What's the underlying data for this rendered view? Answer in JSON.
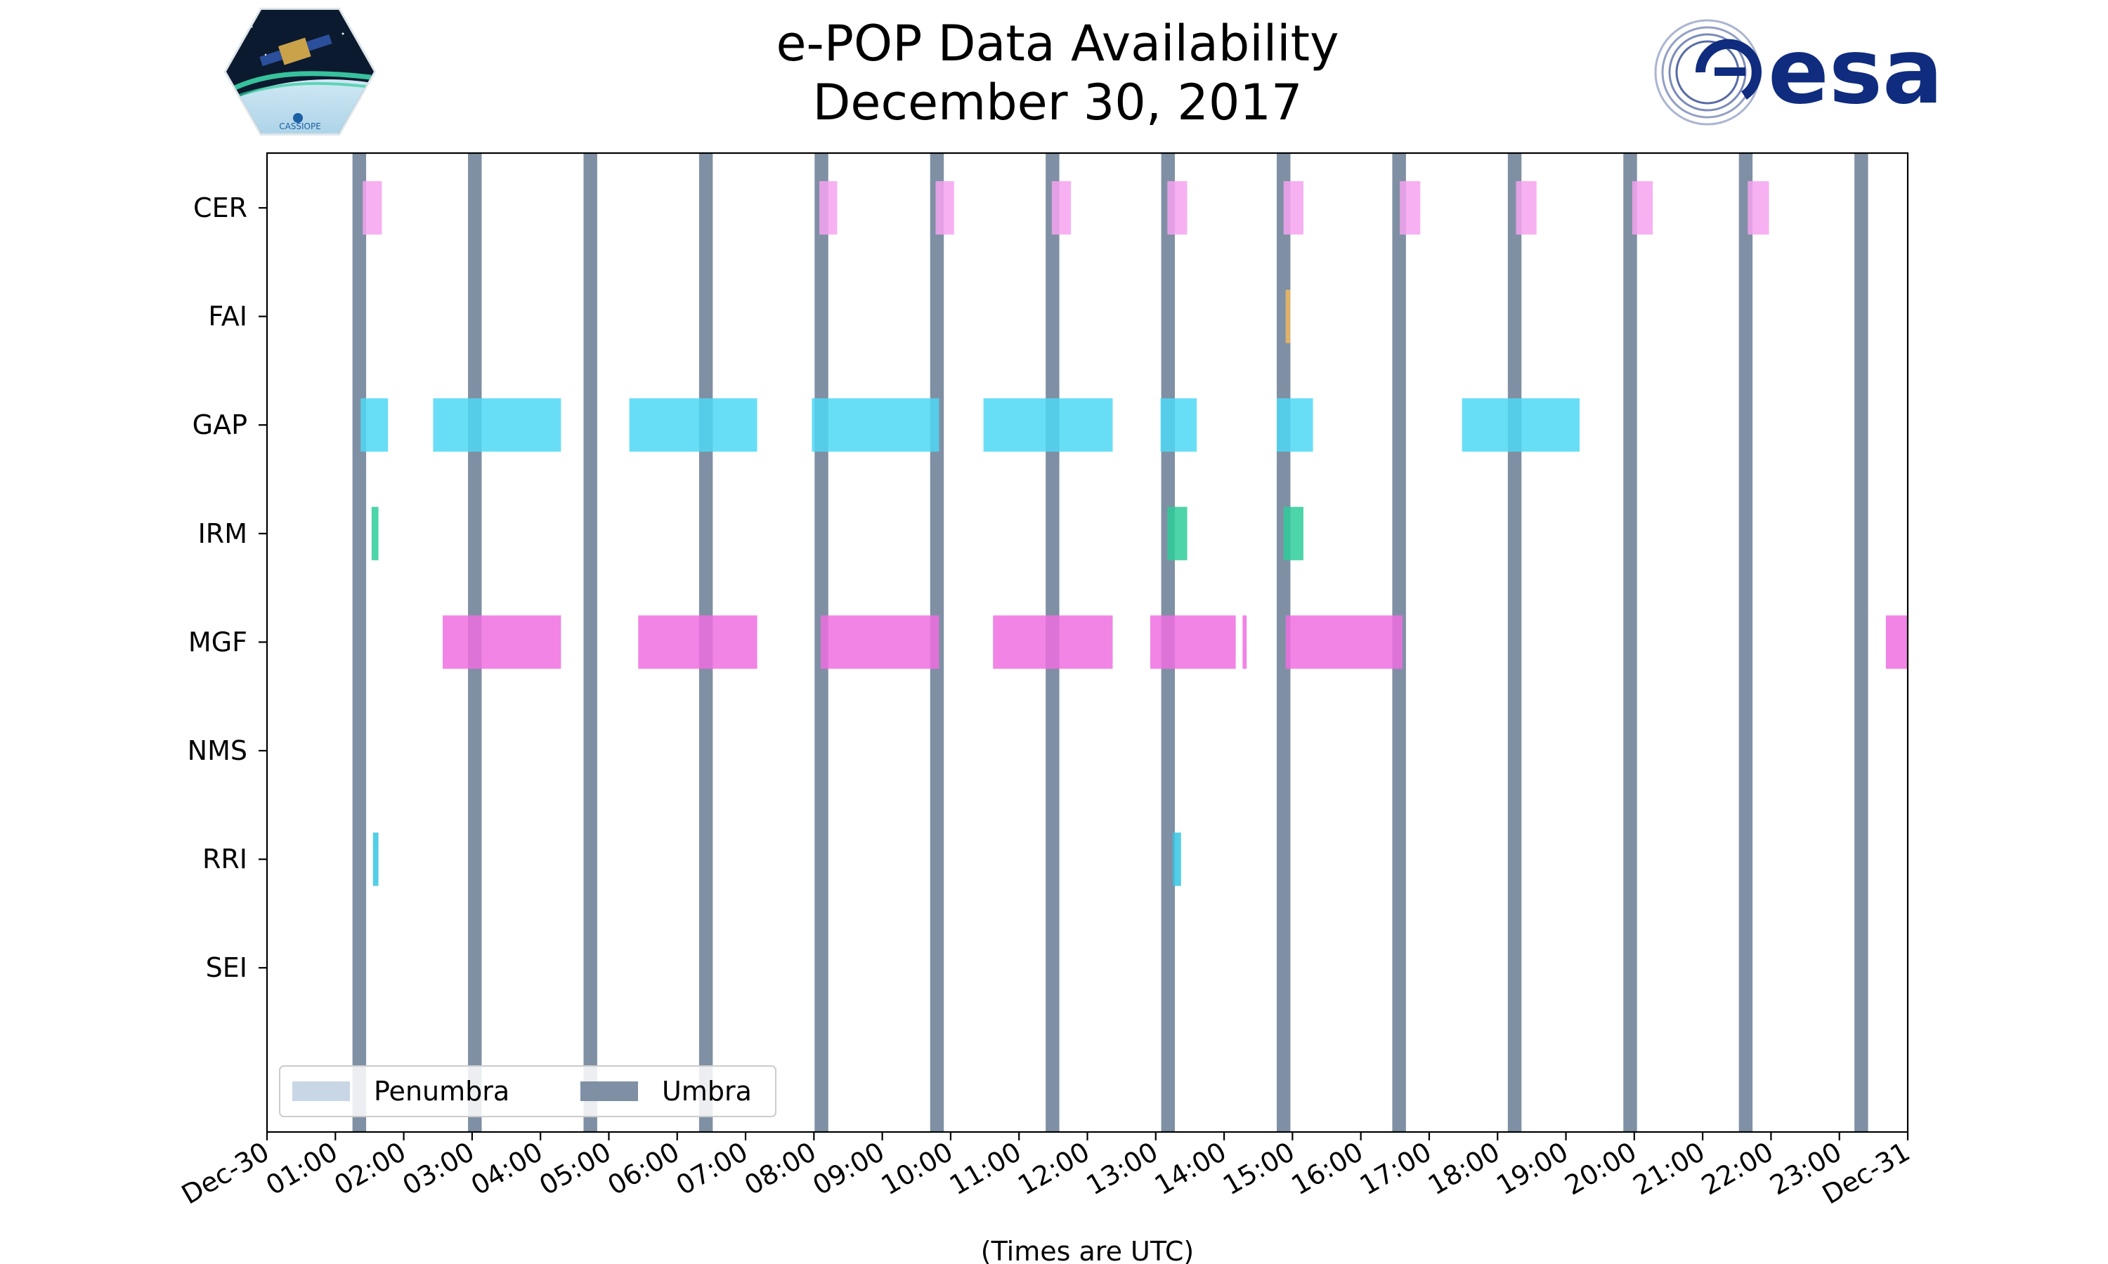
{
  "chart_data": {
    "type": "timeline",
    "title": "e-POP Data Availability\nDecember 30, 2017",
    "title_lines": [
      "e-POP Data Availability",
      "December 30, 2017"
    ],
    "xlabel": "(Times are UTC)",
    "x_unit": "hours UTC since 2017-12-30 00:00",
    "xlim": [
      0,
      24
    ],
    "x_tick_labels": [
      "Dec-30",
      "01:00",
      "02:00",
      "03:00",
      "04:00",
      "05:00",
      "06:00",
      "07:00",
      "08:00",
      "09:00",
      "10:00",
      "11:00",
      "12:00",
      "13:00",
      "14:00",
      "15:00",
      "16:00",
      "17:00",
      "18:00",
      "19:00",
      "20:00",
      "21:00",
      "22:00",
      "23:00",
      "Dec-31"
    ],
    "categories": [
      "CER",
      "FAI",
      "GAP",
      "IRM",
      "MGF",
      "NMS",
      "RRI",
      "SEI"
    ],
    "legend": {
      "placement": "lower-left",
      "entries": [
        {
          "label": "Penumbra",
          "color": "#c9d6e6"
        },
        {
          "label": "Umbra",
          "color": "#7f90a4"
        }
      ]
    },
    "umbra_intervals": [
      [
        1.25,
        1.45
      ],
      [
        2.94,
        3.14
      ],
      [
        4.63,
        4.83
      ],
      [
        6.32,
        6.52
      ],
      [
        8.01,
        8.21
      ],
      [
        9.7,
        9.9
      ],
      [
        11.39,
        11.59
      ],
      [
        13.08,
        13.28
      ],
      [
        14.77,
        14.97
      ],
      [
        16.46,
        16.66
      ],
      [
        18.15,
        18.35
      ],
      [
        19.84,
        20.04
      ],
      [
        21.53,
        21.73
      ],
      [
        23.22,
        23.42
      ]
    ],
    "series": [
      {
        "name": "CER",
        "color": "#f6a3f0",
        "intervals": [
          [
            1.4,
            1.68
          ],
          [
            8.08,
            8.34
          ],
          [
            9.78,
            10.05
          ],
          [
            11.48,
            11.76
          ],
          [
            13.17,
            13.46
          ],
          [
            14.87,
            15.16
          ],
          [
            16.57,
            16.87
          ],
          [
            18.27,
            18.57
          ],
          [
            19.97,
            20.27
          ],
          [
            21.66,
            21.97
          ]
        ]
      },
      {
        "name": "FAI",
        "color": "#f0b860",
        "intervals": [
          [
            14.9,
            14.97
          ]
        ]
      },
      {
        "name": "GAP",
        "color": "#4dd8f5",
        "intervals": [
          [
            1.37,
            1.77
          ],
          [
            2.43,
            4.3
          ],
          [
            5.3,
            7.17
          ],
          [
            7.97,
            9.83
          ],
          [
            10.48,
            12.37
          ],
          [
            13.07,
            13.6
          ],
          [
            14.77,
            15.3
          ],
          [
            17.48,
            19.2
          ]
        ]
      },
      {
        "name": "IRM",
        "color": "#2ecc9a",
        "intervals": [
          [
            1.53,
            1.63
          ],
          [
            13.17,
            13.46
          ],
          [
            14.87,
            15.16
          ]
        ]
      },
      {
        "name": "MGF",
        "color": "#ee6fe0",
        "intervals": [
          [
            2.57,
            4.3
          ],
          [
            5.43,
            7.17
          ],
          [
            8.1,
            9.83
          ],
          [
            10.62,
            12.37
          ],
          [
            12.92,
            14.17
          ],
          [
            14.27,
            14.33
          ],
          [
            14.9,
            16.61
          ],
          [
            23.68,
            24.0
          ]
        ]
      },
      {
        "name": "NMS",
        "color": "#bbbbbb",
        "intervals": []
      },
      {
        "name": "RRI",
        "color": "#35c6e3",
        "intervals": [
          [
            1.55,
            1.63
          ],
          [
            13.25,
            13.37
          ]
        ]
      },
      {
        "name": "SEI",
        "color": "#bbbbbb",
        "intervals": []
      }
    ]
  },
  "logos": {
    "left_icon": "cassiope-mission-patch",
    "left_text": "CASSIOPE",
    "right_icon": "esa-logo",
    "right_text": "esa"
  },
  "colors": {
    "umbra": "#7f90a4",
    "penumbra": "#c9d6e6",
    "esa_blue": "#0f2c7f"
  }
}
